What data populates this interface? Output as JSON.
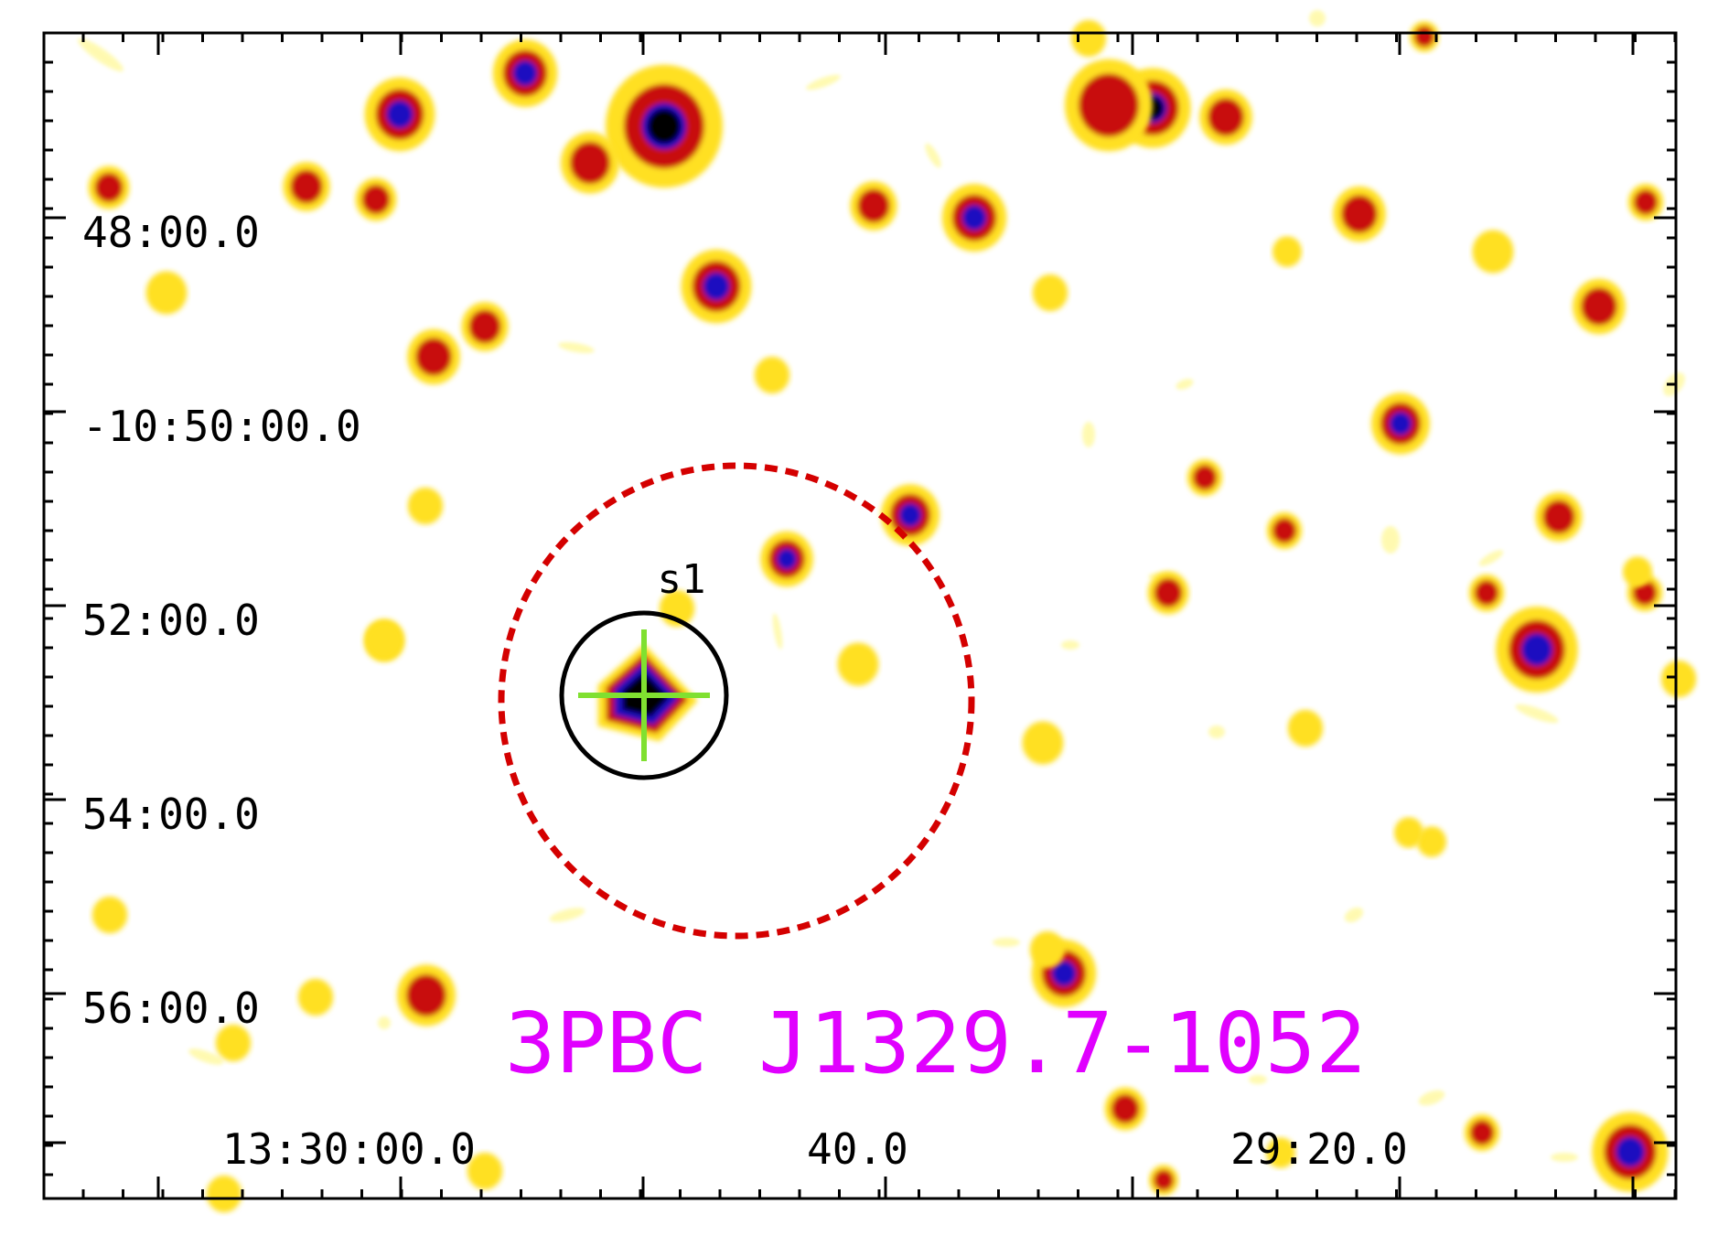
{
  "image": {
    "source_name": "3PBC J1329.7-1052",
    "region_label": "s1",
    "colors": {
      "source_name": "#e000ff",
      "error_ellipse": "#d40000",
      "region_circle": "#000000",
      "crosshair": "#80e030",
      "frame": "#000000",
      "source_core": "#1a10c0",
      "source_mid": "#c81010",
      "source_halo": "#ffe020"
    },
    "dec_ticks": [
      "48:00.0",
      "-10:50:00.0",
      "52:00.0",
      "54:00.0",
      "56:00.0"
    ],
    "ra_ticks": [
      "13:30:00.0",
      "40.0",
      "29:20.0"
    ]
  }
}
